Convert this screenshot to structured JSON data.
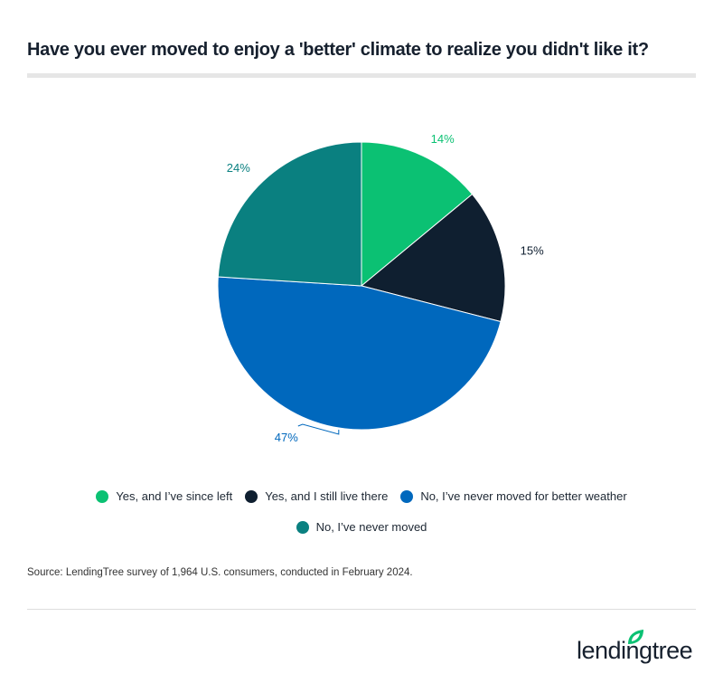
{
  "title": "Have you ever moved to enjoy a 'better' climate to realize you didn't like it?",
  "chart_data": {
    "type": "pie",
    "categories": [
      "Yes, and I’ve since left",
      "Yes, and I still live there",
      "No, I’ve never moved for better weather",
      "No, I’ve never moved"
    ],
    "values": [
      14,
      15,
      47,
      24
    ],
    "labels": [
      "14%",
      "15%",
      "47%",
      "24%"
    ],
    "colors": [
      "#0bc173",
      "#0f1f30",
      "#0068bd",
      "#0a8080"
    ],
    "legend_position": "bottom"
  },
  "source": "Source: LendingTree survey of 1,964 U.S. consumers, conducted in February 2024.",
  "logo": "lendingtree"
}
